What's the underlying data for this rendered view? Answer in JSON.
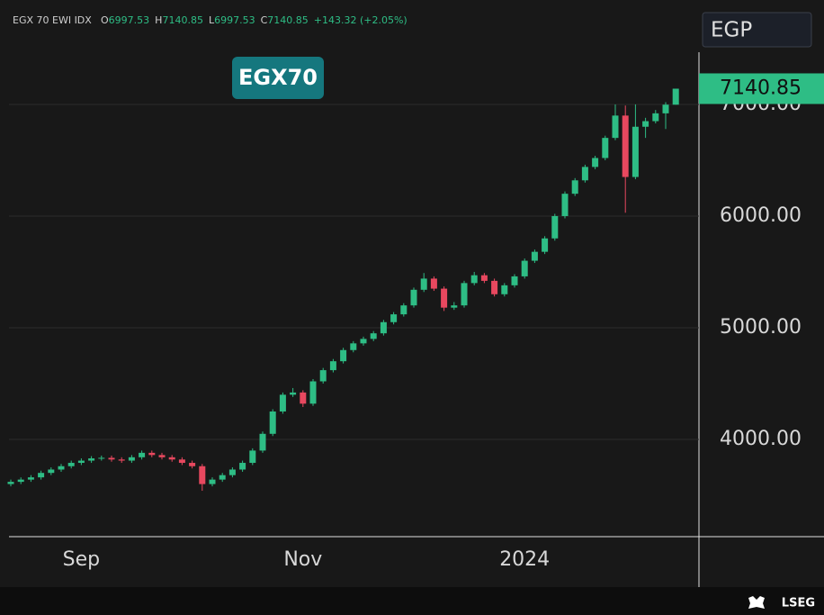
{
  "header": {
    "symbol": "EGX 70 EWI IDX",
    "ohlc": [
      {
        "key": "O",
        "value": "6997.53"
      },
      {
        "key": "H",
        "value": "7140.85"
      },
      {
        "key": "L",
        "value": "6997.53"
      },
      {
        "key": "C",
        "value": "7140.85"
      }
    ],
    "change": "+143.32 (+2.05%)",
    "currency": "EGP"
  },
  "badge": "EGX70",
  "footer": "LSEG",
  "chart_data": {
    "type": "candlestick",
    "categories": [
      null,
      null,
      null,
      null,
      null,
      null,
      null,
      "Sep",
      null,
      null,
      null,
      null,
      null,
      null,
      null,
      null,
      null,
      null,
      null,
      null,
      null,
      null,
      null,
      null,
      null,
      null,
      null,
      null,
      null,
      "Nov",
      null,
      null,
      null,
      null,
      null,
      null,
      null,
      null,
      null,
      null,
      null,
      null,
      null,
      null,
      null,
      null,
      null,
      null,
      null,
      null,
      null,
      "2024",
      null,
      null,
      null,
      null,
      null,
      null,
      null,
      null,
      null,
      null,
      null,
      null,
      null,
      null,
      null
    ],
    "open": [
      3600,
      3620,
      3640,
      3660,
      3700,
      3730,
      3760,
      3790,
      3810,
      3830,
      3835,
      3820,
      3810,
      3840,
      3880,
      3860,
      3840,
      3820,
      3790,
      3760,
      3600,
      3640,
      3680,
      3730,
      3790,
      3900,
      4050,
      4250,
      4400,
      4420,
      4320,
      4520,
      4620,
      4700,
      4800,
      4860,
      4900,
      4950,
      5050,
      5120,
      5200,
      5340,
      5440,
      5350,
      5180,
      5200,
      5400,
      5470,
      5420,
      5300,
      5380,
      5460,
      5600,
      5680,
      5800,
      6000,
      6200,
      6320,
      6440,
      6520,
      6700,
      6900,
      6350,
      6800,
      6850,
      6920,
      6997.53
    ],
    "high": [
      3640,
      3660,
      3680,
      3720,
      3750,
      3780,
      3810,
      3830,
      3850,
      3855,
      3855,
      3840,
      3860,
      3900,
      3900,
      3880,
      3860,
      3840,
      3810,
      3780,
      3660,
      3700,
      3750,
      3810,
      3920,
      4070,
      4270,
      4420,
      4460,
      4440,
      4540,
      4640,
      4720,
      4820,
      4880,
      4920,
      4970,
      5070,
      5140,
      5220,
      5360,
      5490,
      5460,
      5370,
      5230,
      5420,
      5500,
      5490,
      5440,
      5400,
      5480,
      5620,
      5700,
      5820,
      6020,
      6220,
      6340,
      6460,
      6540,
      6720,
      7000,
      6990,
      7000,
      6880,
      6950,
      7020,
      7140.85
    ],
    "low": [
      3580,
      3600,
      3620,
      3640,
      3680,
      3710,
      3740,
      3770,
      3790,
      3810,
      3800,
      3790,
      3790,
      3820,
      3840,
      3820,
      3800,
      3770,
      3740,
      3540,
      3580,
      3620,
      3660,
      3710,
      3770,
      3880,
      4030,
      4230,
      4380,
      4290,
      4300,
      4500,
      4600,
      4680,
      4780,
      4840,
      4880,
      4930,
      5030,
      5100,
      5180,
      5320,
      5330,
      5150,
      5160,
      5180,
      5380,
      5400,
      5280,
      5280,
      5360,
      5440,
      5580,
      5660,
      5780,
      5980,
      6180,
      6300,
      6420,
      6500,
      6680,
      6030,
      6330,
      6700,
      6830,
      6780,
      6997.53
    ],
    "close": [
      3620,
      3640,
      3660,
      3700,
      3730,
      3760,
      3790,
      3810,
      3830,
      3835,
      3820,
      3810,
      3840,
      3880,
      3860,
      3840,
      3820,
      3790,
      3760,
      3600,
      3640,
      3680,
      3730,
      3790,
      3900,
      4050,
      4250,
      4400,
      4420,
      4320,
      4520,
      4620,
      4700,
      4800,
      4860,
      4900,
      4950,
      5050,
      5120,
      5200,
      5340,
      5440,
      5350,
      5180,
      5200,
      5400,
      5470,
      5420,
      5300,
      5380,
      5460,
      5600,
      5680,
      5800,
      6000,
      6200,
      6320,
      6440,
      6520,
      6700,
      6900,
      6350,
      6800,
      6850,
      6920,
      6997.53,
      7140.85
    ],
    "up_color": "#2ebd85",
    "down_color": "#e8485f",
    "ylim": [
      3129,
      7935
    ],
    "yticks": [
      {
        "value": 4000,
        "label": "4000.00"
      },
      {
        "value": 5000,
        "label": "5000.00"
      },
      {
        "value": 6000,
        "label": "6000.00"
      },
      {
        "value": 7000,
        "label": "7000.00"
      }
    ],
    "grid": true,
    "last_price": {
      "value": 7140.85,
      "label": "7140.85"
    }
  }
}
